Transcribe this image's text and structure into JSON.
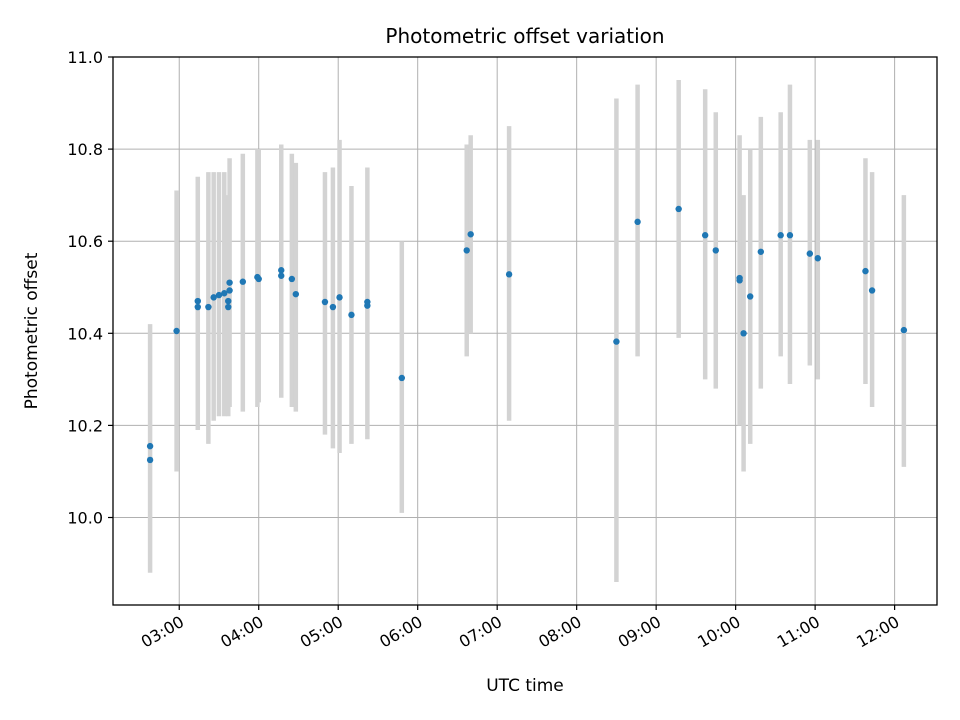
{
  "chart_data": {
    "type": "scatter",
    "title": "Photometric offset variation",
    "xlabel": "UTC time",
    "ylabel": "Photometric offset",
    "x_unit": "UTC time (HH:MM)",
    "xlim": [
      "02:10",
      "12:32"
    ],
    "ylim": [
      9.81,
      11.0
    ],
    "x_ticks": [
      "03:00",
      "04:00",
      "05:00",
      "06:00",
      "07:00",
      "08:00",
      "09:00",
      "10:00",
      "11:00",
      "12:00"
    ],
    "y_ticks": [
      10.0,
      10.2,
      10.4,
      10.6,
      10.8,
      11.0
    ],
    "y_tick_labels": [
      "10.0",
      "10.2",
      "10.4",
      "10.6",
      "10.8",
      "11.0"
    ],
    "grid": true,
    "legend": "none",
    "colors": {
      "point": "#1f77b4",
      "errorbar": "#d3d3d3",
      "grid": "#b0b0b0"
    },
    "points": [
      {
        "x": "02:38",
        "y": 10.155,
        "err_low": 9.88,
        "err_high": 10.42
      },
      {
        "x": "02:38",
        "y": 10.125
      },
      {
        "x": "02:58",
        "y": 10.405,
        "err_low": 10.1,
        "err_high": 10.71
      },
      {
        "x": "03:14",
        "y": 10.47,
        "err_low": 10.19,
        "err_high": 10.74
      },
      {
        "x": "03:14",
        "y": 10.457
      },
      {
        "x": "03:22",
        "y": 10.457,
        "err_low": 10.16,
        "err_high": 10.75
      },
      {
        "x": "03:26",
        "y": 10.478,
        "err_low": 10.21,
        "err_high": 10.75
      },
      {
        "x": "03:30",
        "y": 10.483,
        "err_low": 10.22,
        "err_high": 10.75
      },
      {
        "x": "03:34",
        "y": 10.487,
        "err_low": 10.22,
        "err_high": 10.75
      },
      {
        "x": "03:37",
        "y": 10.457,
        "err_low": 10.22,
        "err_high": 10.7
      },
      {
        "x": "03:37",
        "y": 10.47
      },
      {
        "x": "03:38",
        "y": 10.51,
        "err_low": 10.24,
        "err_high": 10.78
      },
      {
        "x": "03:38",
        "y": 10.493
      },
      {
        "x": "03:48",
        "y": 10.512,
        "err_low": 10.23,
        "err_high": 10.79
      },
      {
        "x": "03:59",
        "y": 10.522,
        "err_low": 10.24,
        "err_high": 10.8
      },
      {
        "x": "04:00",
        "y": 10.518,
        "err_low": 10.25,
        "err_high": 10.8
      },
      {
        "x": "04:17",
        "y": 10.537,
        "err_low": 10.26,
        "err_high": 10.81
      },
      {
        "x": "04:17",
        "y": 10.525
      },
      {
        "x": "04:25",
        "y": 10.518,
        "err_low": 10.24,
        "err_high": 10.79
      },
      {
        "x": "04:28",
        "y": 10.485,
        "err_low": 10.23,
        "err_high": 10.77
      },
      {
        "x": "04:50",
        "y": 10.468,
        "err_low": 10.18,
        "err_high": 10.75
      },
      {
        "x": "04:56",
        "y": 10.457,
        "err_low": 10.15,
        "err_high": 10.76
      },
      {
        "x": "05:01",
        "y": 10.478,
        "err_low": 10.14,
        "err_high": 10.82
      },
      {
        "x": "05:10",
        "y": 10.44,
        "err_low": 10.16,
        "err_high": 10.72
      },
      {
        "x": "05:22",
        "y": 10.468,
        "err_low": 10.17,
        "err_high": 10.76
      },
      {
        "x": "05:22",
        "y": 10.46
      },
      {
        "x": "05:48",
        "y": 10.303,
        "err_low": 10.01,
        "err_high": 10.6
      },
      {
        "x": "06:37",
        "y": 10.58,
        "err_low": 10.35,
        "err_high": 10.81
      },
      {
        "x": "06:40",
        "y": 10.615,
        "err_low": 10.4,
        "err_high": 10.83
      },
      {
        "x": "07:09",
        "y": 10.528,
        "err_low": 10.21,
        "err_high": 10.85
      },
      {
        "x": "08:30",
        "y": 10.382,
        "err_low": 9.86,
        "err_high": 10.91
      },
      {
        "x": "08:46",
        "y": 10.642,
        "err_low": 10.35,
        "err_high": 10.94
      },
      {
        "x": "09:17",
        "y": 10.67,
        "err_low": 10.39,
        "err_high": 10.95
      },
      {
        "x": "09:37",
        "y": 10.613,
        "err_low": 10.3,
        "err_high": 10.93
      },
      {
        "x": "09:45",
        "y": 10.58,
        "err_low": 10.28,
        "err_high": 10.88
      },
      {
        "x": "10:03",
        "y": 10.52,
        "err_low": 10.2,
        "err_high": 10.83
      },
      {
        "x": "10:03",
        "y": 10.515
      },
      {
        "x": "10:06",
        "y": 10.4,
        "err_low": 10.1,
        "err_high": 10.7
      },
      {
        "x": "10:11",
        "y": 10.48,
        "err_low": 10.16,
        "err_high": 10.8
      },
      {
        "x": "10:19",
        "y": 10.577,
        "err_low": 10.28,
        "err_high": 10.87
      },
      {
        "x": "10:34",
        "y": 10.613,
        "err_low": 10.35,
        "err_high": 10.88
      },
      {
        "x": "10:41",
        "y": 10.613,
        "err_low": 10.29,
        "err_high": 10.94
      },
      {
        "x": "10:56",
        "y": 10.573,
        "err_low": 10.33,
        "err_high": 10.82
      },
      {
        "x": "11:02",
        "y": 10.563,
        "err_low": 10.3,
        "err_high": 10.82
      },
      {
        "x": "11:38",
        "y": 10.535,
        "err_low": 10.29,
        "err_high": 10.78
      },
      {
        "x": "11:43",
        "y": 10.493,
        "err_low": 10.24,
        "err_high": 10.75
      },
      {
        "x": "12:07",
        "y": 10.407,
        "err_low": 10.11,
        "err_high": 10.7
      }
    ]
  }
}
